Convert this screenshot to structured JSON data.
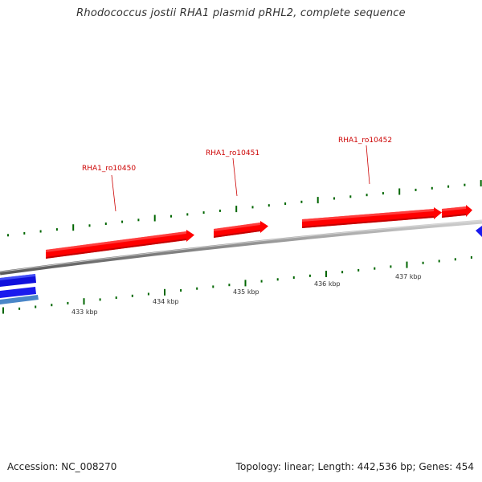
{
  "header": {
    "title": "Rhodococcus jostii RHA1 plasmid pRHL2, complete sequence"
  },
  "genes": {
    "labels": [
      {
        "name": "RHA1_ro10450"
      },
      {
        "name": "RHA1_ro10451"
      },
      {
        "name": "RHA1_ro10452"
      }
    ],
    "forward_color": "#ff0000",
    "reverse_color": "#0000ee",
    "secondary_color": "#4488cc"
  },
  "scale": {
    "kbp_labels": [
      "433 kbp",
      "434 kbp",
      "435 kbp",
      "436 kbp",
      "437 kbp"
    ],
    "tick_color": "#006600",
    "backbone_color": "#888888"
  },
  "footer": {
    "accession": "Accession: NC_008270",
    "summary": "Topology: linear; Length: 442,536 bp; Genes: 454"
  }
}
